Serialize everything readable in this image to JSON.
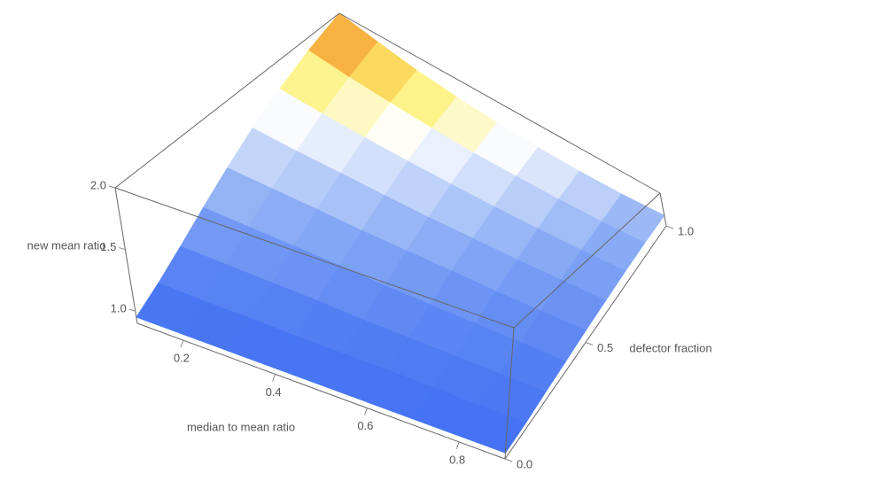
{
  "chart_data": {
    "type": "surface",
    "xlabel": "median to mean ratio",
    "ylabel": "defector fraction",
    "zlabel": "new mean ratio",
    "x": [
      0.1,
      0.2,
      0.3,
      0.4,
      0.5,
      0.6,
      0.7,
      0.8,
      0.9
    ],
    "y": [
      0,
      0.125,
      0.25,
      0.375,
      0.5,
      0.625,
      0.75,
      0.875,
      1
    ],
    "z": [
      [
        0.95,
        0.95,
        0.95,
        0.95,
        0.95,
        0.95,
        0.95,
        0.95,
        0.95
      ],
      [
        1.0,
        0.99,
        0.99,
        0.98,
        0.98,
        0.98,
        0.97,
        0.97,
        0.96
      ],
      [
        1.08,
        1.07,
        1.06,
        1.05,
        1.03,
        1.02,
        1.01,
        1.0,
        0.99
      ],
      [
        1.19,
        1.17,
        1.15,
        1.13,
        1.1,
        1.08,
        1.06,
        1.04,
        1.02
      ],
      [
        1.32,
        1.29,
        1.26,
        1.22,
        1.19,
        1.16,
        1.12,
        1.09,
        1.06
      ],
      [
        1.47,
        1.42,
        1.38,
        1.33,
        1.28,
        1.24,
        1.19,
        1.15,
        1.1
      ],
      [
        1.63,
        1.57,
        1.51,
        1.45,
        1.39,
        1.33,
        1.27,
        1.21,
        1.15
      ],
      [
        1.81,
        1.73,
        1.66,
        1.58,
        1.5,
        1.43,
        1.35,
        1.27,
        1.2
      ],
      [
        2.0,
        1.91,
        1.81,
        1.72,
        1.63,
        1.53,
        1.44,
        1.34,
        1.25
      ]
    ],
    "xlim": [
      0.1,
      0.9
    ],
    "ylim": [
      0,
      1
    ],
    "zlim": [
      0.9,
      2.0
    ],
    "xticks": [
      0.2,
      0.4,
      0.6,
      0.8
    ],
    "yticks": [
      {
        "value": 0,
        "label": "0.0"
      },
      0.5,
      {
        "value": 1,
        "label": "1.0"
      }
    ],
    "zticks": [
      {
        "value": 1,
        "label": "1.0"
      },
      1.5,
      {
        "value": 2,
        "label": "2.0"
      }
    ],
    "colormap": [
      "#3566f2",
      "#8fb0f5",
      "#ffffff",
      "#fcf070",
      "#f7b040",
      "#d92020"
    ]
  }
}
